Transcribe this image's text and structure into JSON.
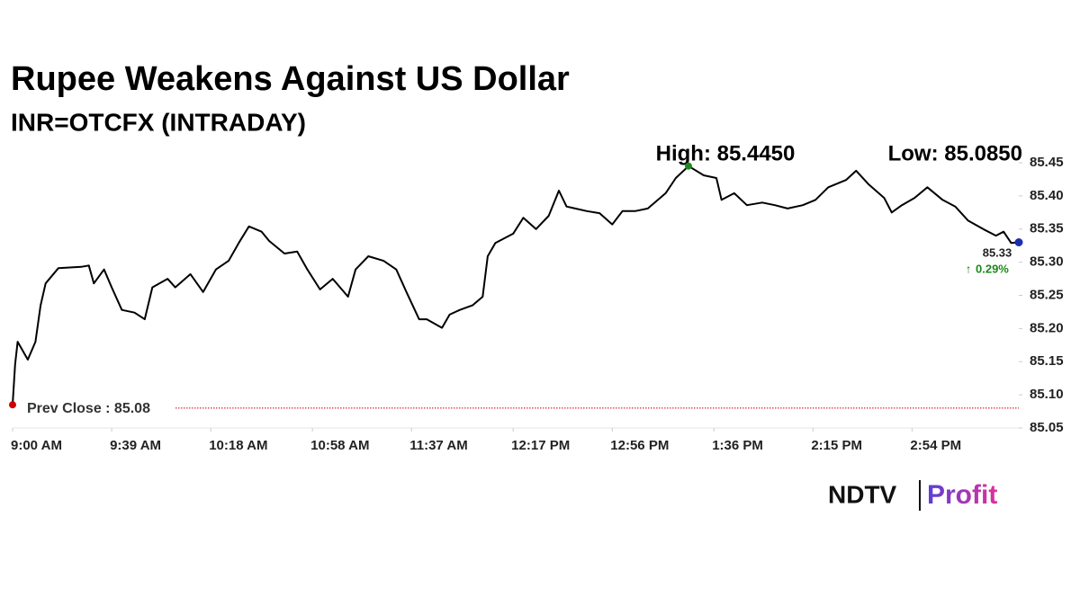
{
  "chart_data": {
    "type": "line",
    "title": "Rupee Weakens Against US Dollar",
    "subtitle": "INR=OTCFX (INTRADAY)",
    "color": "#000000",
    "x": [
      "9:00",
      "9:01",
      "9:02",
      "9:06",
      "9:09",
      "9:11",
      "9:13",
      "9:18",
      "9:27",
      "9:30",
      "9:32",
      "9:36",
      "9:39",
      "9:43",
      "9:48",
      "9:52",
      "9:55",
      "10:01",
      "10:04",
      "10:10",
      "10:15",
      "10:20",
      "10:25",
      "10:29",
      "10:33",
      "10:38",
      "10:41",
      "10:47",
      "10:52",
      "10:56",
      "11:01",
      "11:06",
      "11:12",
      "11:15",
      "11:20",
      "11:26",
      "11:31",
      "11:35",
      "11:40",
      "11:43",
      "11:49",
      "11:52",
      "11:56",
      "12:01",
      "12:05",
      "12:07",
      "12:10",
      "12:17",
      "12:21",
      "12:26",
      "12:31",
      "12:35",
      "12:38",
      "12:46",
      "12:51",
      "12:56",
      "13:00",
      "13:05",
      "13:10",
      "13:17",
      "13:21",
      "13:26",
      "13:32",
      "13:37",
      "13:39",
      "13:44",
      "13:49",
      "13:55",
      "14:00",
      "14:05",
      "14:11",
      "14:16",
      "14:21",
      "14:28",
      "14:32",
      "14:37",
      "14:43",
      "14:46",
      "14:50",
      "14:55",
      "15:00",
      "15:06",
      "15:11",
      "15:16",
      "15:22",
      "15:27",
      "15:30",
      "15:33",
      "15:36"
    ],
    "values": [
      85.085,
      85.146,
      85.18,
      85.153,
      85.18,
      85.235,
      85.268,
      85.291,
      85.293,
      85.295,
      85.268,
      85.289,
      85.262,
      85.228,
      85.224,
      85.214,
      85.262,
      85.275,
      85.262,
      85.282,
      85.255,
      85.289,
      85.302,
      85.329,
      85.354,
      85.346,
      85.332,
      85.313,
      85.316,
      85.289,
      85.259,
      85.275,
      85.248,
      85.289,
      85.309,
      85.302,
      85.289,
      85.255,
      85.214,
      85.214,
      85.201,
      85.221,
      85.228,
      85.235,
      85.248,
      85.309,
      85.329,
      85.343,
      85.367,
      85.35,
      85.37,
      85.408,
      85.384,
      85.377,
      85.374,
      85.357,
      85.377,
      85.377,
      85.381,
      85.404,
      85.427,
      85.445,
      85.431,
      85.427,
      85.394,
      85.404,
      85.386,
      85.39,
      85.386,
      85.381,
      85.386,
      85.394,
      85.413,
      85.424,
      85.438,
      85.417,
      85.397,
      85.375,
      85.386,
      85.397,
      85.413,
      85.394,
      85.384,
      85.363,
      85.35,
      85.34,
      85.346,
      85.329,
      85.33
    ],
    "xlim": [
      "9:00",
      "15:36"
    ],
    "xticks": [
      {
        "value": "9:00",
        "label": "9:00 AM"
      },
      {
        "value": "9:39",
        "label": "9:39 AM"
      },
      {
        "value": "10:18",
        "label": "10:18 AM"
      },
      {
        "value": "10:58",
        "label": "10:58 AM"
      },
      {
        "value": "11:37",
        "label": "11:37 AM"
      },
      {
        "value": "12:17",
        "label": "12:17 PM"
      },
      {
        "value": "12:56",
        "label": "12:56 PM"
      },
      {
        "value": "13:36",
        "label": "1:36 PM"
      },
      {
        "value": "14:15",
        "label": "2:15 PM"
      },
      {
        "value": "14:54",
        "label": "2:54 PM"
      }
    ],
    "ylim": [
      85.05,
      85.45
    ],
    "yticks": [
      85.05,
      {
        "value": 85.1,
        "label": "85.10"
      },
      85.15,
      {
        "value": 85.2,
        "label": "85.20"
      },
      85.25,
      {
        "value": 85.3,
        "label": "85.30"
      },
      85.35,
      {
        "value": 85.4,
        "label": "85.40"
      },
      85.45
    ],
    "grid": false,
    "prev_close": {
      "value": 85.08,
      "label": "Prev Close : 85.08",
      "color": "#cc0000"
    },
    "high_label": "High: 85.4450",
    "low_label": "Low: 85.0850",
    "last_label": "85.33",
    "change_label": "0.29%"
  },
  "brand": {
    "name": "NDTV",
    "product": "Profit"
  }
}
